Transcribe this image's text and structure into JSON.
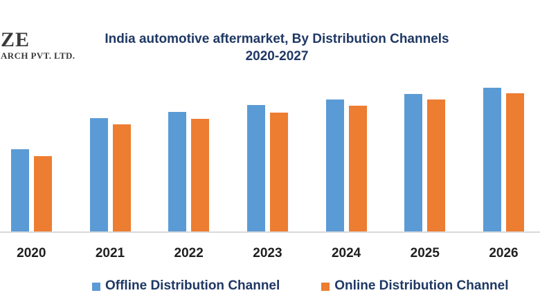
{
  "logo": {
    "line1": "ZE",
    "line2": "ARCH PVT. LTD."
  },
  "title": {
    "line1": "India automotive aftermarket, By Distribution Channels",
    "line2": "2020-2027"
  },
  "chart_data": {
    "type": "bar",
    "title": "India automotive aftermarket, By Distribution Channels 2020-2027",
    "categories": [
      "2020",
      "2021",
      "2022",
      "2023",
      "2024",
      "2025",
      "2026"
    ],
    "series": [
      {
        "name": "Offline Distribution Channel",
        "color": "#5B9BD5",
        "values": [
          57.2,
          78.8,
          83.2,
          88.0,
          91.8,
          95.7,
          100.0
        ]
      },
      {
        "name": "Online Distribution Channel",
        "color": "#ED7D31",
        "values": [
          52.4,
          74.5,
          78.4,
          82.7,
          87.5,
          91.8,
          96.2
        ]
      }
    ],
    "xlabel": "",
    "ylabel": "",
    "value_note": "No y-axis, ticks or data labels are visible in the source image; values are relative bar heights normalized so 2026 Offline = 100.",
    "ylim": [
      0,
      104
    ],
    "grid": false,
    "legend_position": "bottom"
  },
  "colors": {
    "offline_bar": "#5B9BD5",
    "online_bar": "#ED7D31",
    "title_text": "#1F3864",
    "legend_text": "#1F3864",
    "year_label_text": "#1F1F1F",
    "axis_line": "#D9D9D9",
    "logo_text": "#3A3A3A"
  }
}
